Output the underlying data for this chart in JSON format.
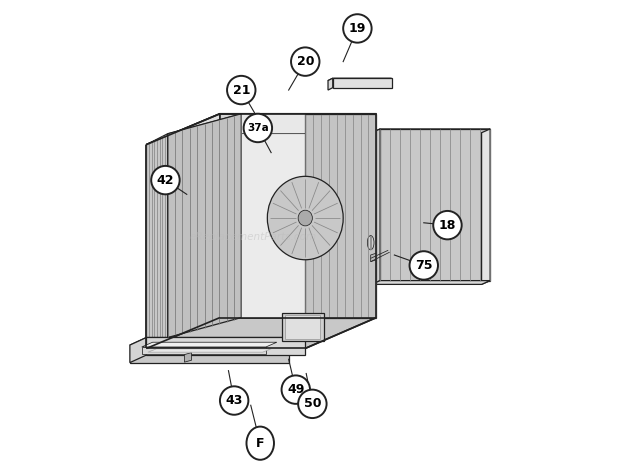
{
  "background_color": "#ffffff",
  "watermark_text": "eReplacementParts.com",
  "watermark_color": "#bbbbbb",
  "watermark_alpha": 0.45,
  "line_color": "#222222",
  "circle_bg": "#ffffff",
  "circle_lw": 1.4,
  "circle_r": 0.03,
  "font_size": 9,
  "font_size_small": 7.5,
  "callout_positions": {
    "19": [
      0.6,
      0.94,
      0.57,
      0.87
    ],
    "20": [
      0.49,
      0.87,
      0.455,
      0.81
    ],
    "21": [
      0.355,
      0.81,
      0.39,
      0.75
    ],
    "37a": [
      0.39,
      0.73,
      0.418,
      0.678
    ],
    "42": [
      0.195,
      0.62,
      0.24,
      0.59
    ],
    "18": [
      0.79,
      0.525,
      0.74,
      0.53
    ],
    "75": [
      0.74,
      0.44,
      0.678,
      0.462
    ],
    "43": [
      0.34,
      0.155,
      0.328,
      0.218
    ],
    "49": [
      0.47,
      0.178,
      0.455,
      0.242
    ],
    "50": [
      0.505,
      0.148,
      0.492,
      0.212
    ],
    "F": [
      0.395,
      0.065,
      0.375,
      0.145
    ]
  }
}
